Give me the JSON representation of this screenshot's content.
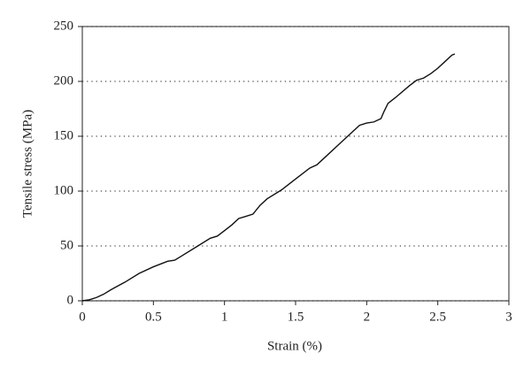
{
  "chart_data": {
    "type": "line",
    "x_label": "Strain (%)",
    "y_label": "Tensile stress (MPa)",
    "xlim": [
      0,
      3
    ],
    "ylim": [
      0,
      250
    ],
    "xticks": [
      0,
      0.5,
      1,
      1.5,
      2,
      2.5,
      3
    ],
    "yticks": [
      0,
      50,
      100,
      150,
      200,
      250
    ],
    "grid": true,
    "series": [
      {
        "color": "#111111",
        "x": [
          0,
          0.05,
          0.1,
          0.15,
          0.2,
          0.3,
          0.4,
          0.5,
          0.6,
          0.65,
          0.7,
          0.8,
          0.9,
          0.95,
          1.0,
          1.05,
          1.1,
          1.15,
          1.2,
          1.25,
          1.3,
          1.4,
          1.5,
          1.6,
          1.65,
          1.7,
          1.8,
          1.9,
          1.95,
          2.0,
          2.05,
          2.1,
          2.12,
          2.15,
          2.2,
          2.3,
          2.35,
          2.4,
          2.45,
          2.5,
          2.55,
          2.6,
          2.62
        ],
        "values": [
          0,
          1,
          3,
          6,
          10,
          17,
          25,
          31,
          36,
          37,
          41,
          49,
          57,
          59,
          64,
          69,
          75,
          77,
          79,
          87,
          93,
          101,
          111,
          121,
          124,
          130,
          142,
          154,
          160,
          162,
          163,
          166,
          172,
          180,
          185,
          196,
          201,
          203,
          207,
          212,
          218,
          224,
          225
        ]
      }
    ]
  }
}
